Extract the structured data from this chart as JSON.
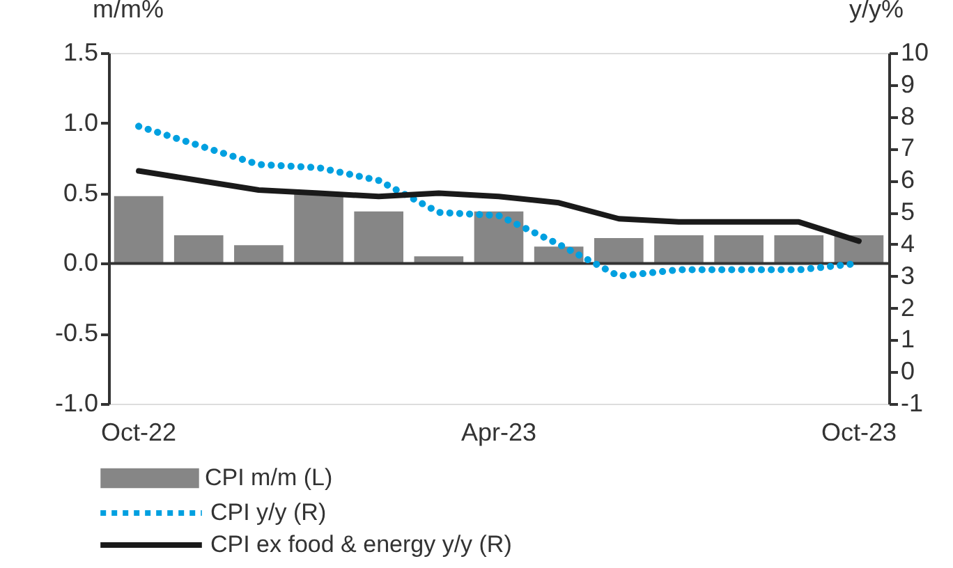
{
  "chart_data": {
    "type": "bar",
    "categories": [
      "Oct-22",
      null,
      null,
      null,
      null,
      null,
      "Apr-23",
      null,
      null,
      null,
      null,
      null,
      "Oct-23"
    ],
    "ylabel": "m/m%",
    "y2label": "y/y%",
    "ylim": [
      -1.0,
      1.5
    ],
    "yticks": [
      {
        "value": -1,
        "label": "-1.0"
      },
      {
        "value": -0.5,
        "label": "-0.5"
      },
      {
        "value": 0,
        "label": "0.0"
      },
      {
        "value": 0.5,
        "label": "0.5"
      },
      {
        "value": 1,
        "label": "1.0"
      },
      {
        "value": 1.5,
        "label": "1.5"
      }
    ],
    "y2lim": [
      -1,
      10
    ],
    "y2ticks": [
      -1,
      0,
      1,
      2,
      3,
      4,
      5,
      6,
      7,
      8,
      9,
      10
    ],
    "series": [
      {
        "name": "CPI m/m (L)",
        "color": "#868686",
        "values": [
          0.48,
          0.2,
          0.13,
          0.5,
          0.37,
          0.05,
          0.37,
          0.12,
          0.18,
          0.2,
          0.2,
          0.2,
          0.2
        ]
      },
      {
        "name": "CPI y/y (R)",
        "type": "line",
        "axis": "y2",
        "line_style": "dotted",
        "color": "#00a0e0",
        "values": [
          7.7,
          7.1,
          6.5,
          6.4,
          6.0,
          5.0,
          4.9,
          4.0,
          3.0,
          3.2,
          3.2,
          3.2,
          3.4
        ]
      },
      {
        "name": "CPI ex food & energy y/y (R)",
        "type": "line",
        "axis": "y2",
        "line_style": "solid",
        "color": "#1a1a1a",
        "values": [
          6.3,
          6.0,
          5.7,
          5.6,
          5.5,
          5.6,
          5.5,
          5.3,
          4.8,
          4.7,
          4.7,
          4.7,
          4.1
        ]
      }
    ],
    "ref_lines": [
      {
        "axis": "y",
        "value": 0,
        "color": "#333333"
      }
    ],
    "grid": false,
    "legend": "bottom"
  }
}
